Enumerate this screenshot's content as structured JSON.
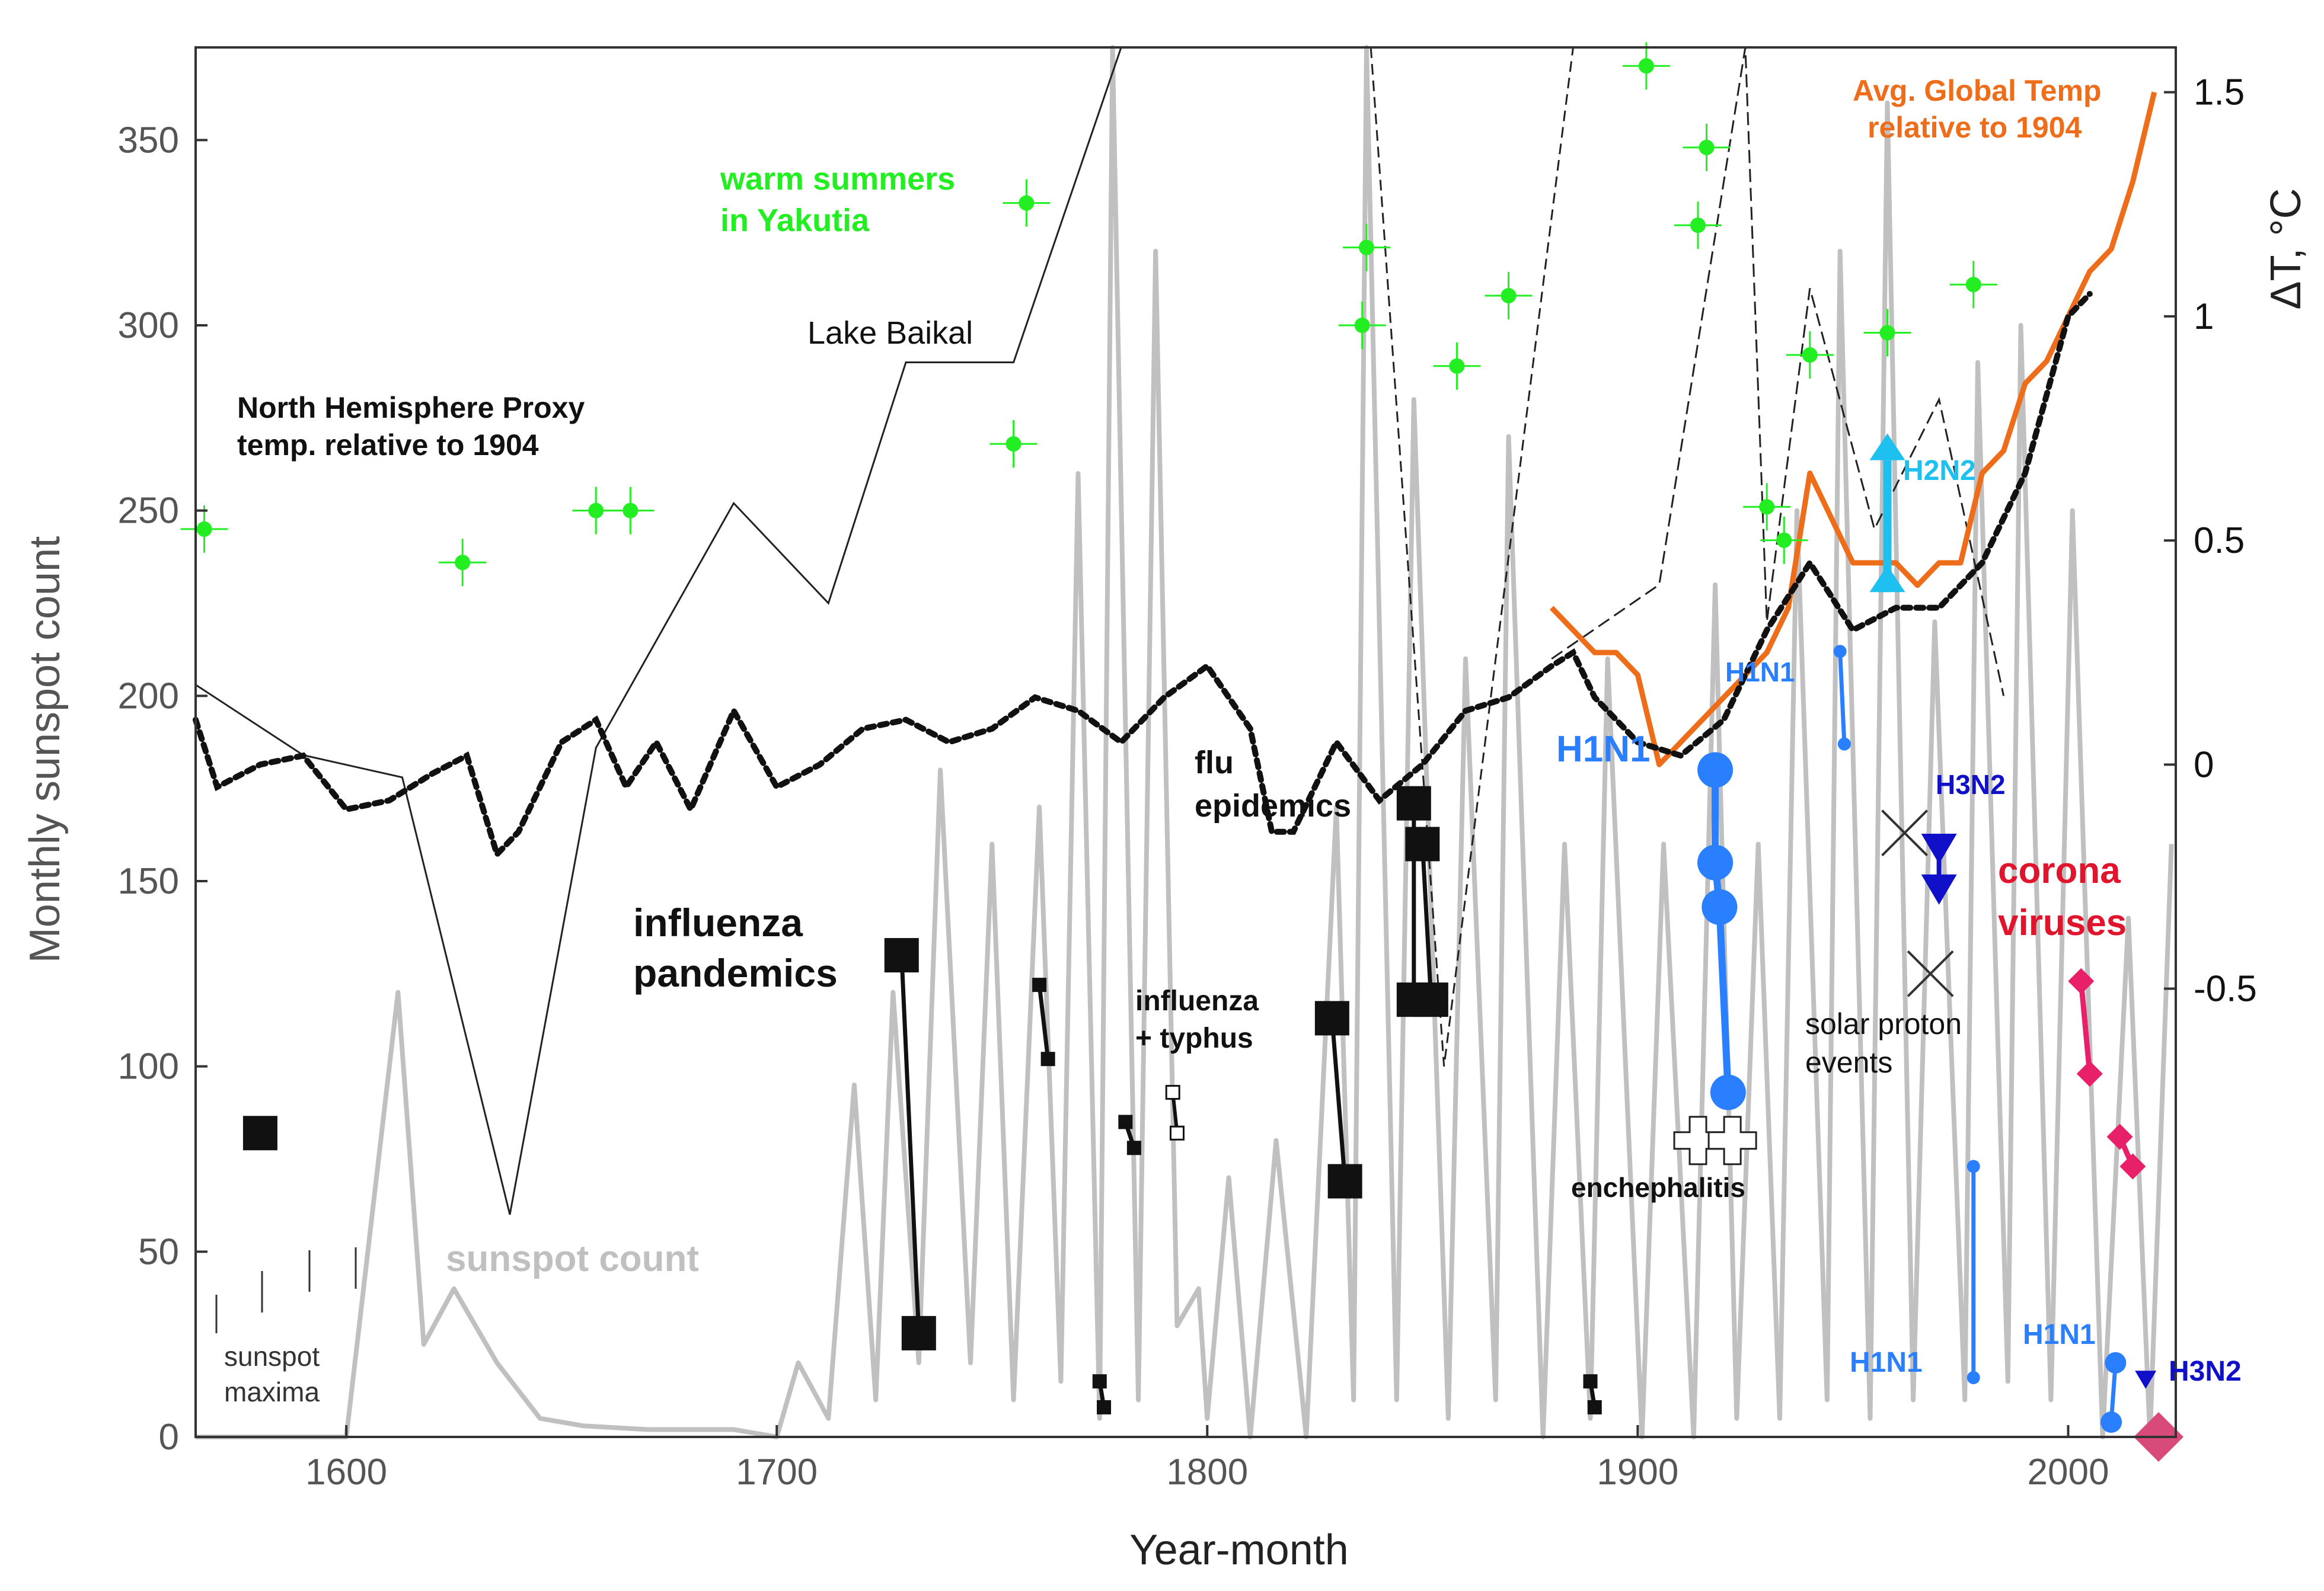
{
  "chart_data": {
    "type": "line",
    "xlabel": "Year-month",
    "ylabel": "Monthly sunspot count",
    "y2label": "ΔT, °C",
    "xlim": [
      1565,
      2025
    ],
    "ylim": [
      0,
      375
    ],
    "y2lim": [
      -1.5,
      1.6
    ],
    "x_ticks": [
      "1600",
      "1700",
      "1800",
      "1900",
      "2000"
    ],
    "y_ticks": [
      "0",
      "50",
      "100",
      "150",
      "200",
      "250",
      "300",
      "350"
    ],
    "y2_ticks": [
      "-0.5",
      "0",
      "0.5",
      "1",
      "1.5"
    ],
    "grid": false,
    "colors": {
      "sunspot": "#c0c0c0",
      "nh_proxy": "#111111",
      "global_temp": "#ee6d1a",
      "yakutia": "#22ee22",
      "h1n1": "#2a7fff",
      "h3n2": "#1010c8",
      "h2n2": "#1ec0f0",
      "corona": "#e8206a",
      "pandemic": "#111111"
    },
    "annotations": {
      "warm_summers": [
        "warm summers",
        "in Yakutia"
      ],
      "lake_baikal": "Lake Baikal",
      "nh_proxy": [
        "North Hemisphere Proxy",
        "temp. relative to 1904"
      ],
      "global_temp": [
        "Avg. Global Temp",
        "relative to 1904"
      ],
      "influenza_pandemics": [
        "influenza",
        "pandemics"
      ],
      "flu_epidemics": [
        "flu",
        "epidemics"
      ],
      "influenza_typhus": [
        "influenza",
        "+ typhus"
      ],
      "h1n1_large": "H1N1",
      "h1n1_upper": "H1N1",
      "h3n2_upper": "H3N2",
      "h2n2": "H2N2",
      "corona": [
        "corona",
        "viruses"
      ],
      "solar_proton": [
        "solar proton",
        "events"
      ],
      "encephalitis": "enchephalitis",
      "sunspot_count": "sunspot count",
      "sunspot_maxima": [
        "sunspot",
        "maxima"
      ],
      "h1n1_lower_a": "H1N1",
      "h1n1_lower_b": "H1N1",
      "h3n2_lower": "H3N2"
    },
    "series": [
      {
        "name": "sunspot count",
        "axis": "left",
        "points": [
          [
            1565,
            0
          ],
          [
            1600,
            0
          ],
          [
            1612,
            120
          ],
          [
            1618,
            25
          ],
          [
            1625,
            40
          ],
          [
            1635,
            20
          ],
          [
            1645,
            5
          ],
          [
            1655,
            3
          ],
          [
            1670,
            2
          ],
          [
            1690,
            2
          ],
          [
            1700,
            0
          ],
          [
            1705,
            20
          ],
          [
            1712,
            5
          ],
          [
            1718,
            95
          ],
          [
            1723,
            10
          ],
          [
            1727,
            120
          ],
          [
            1733,
            20
          ],
          [
            1738,
            180
          ],
          [
            1745,
            20
          ],
          [
            1750,
            160
          ],
          [
            1755,
            10
          ],
          [
            1761,
            170
          ],
          [
            1766,
            15
          ],
          [
            1770,
            260
          ],
          [
            1775,
            5
          ],
          [
            1778,
            390
          ],
          [
            1784,
            10
          ],
          [
            1788,
            320
          ],
          [
            1793,
            30
          ],
          [
            1798,
            40
          ],
          [
            1800,
            5
          ],
          [
            1805,
            70
          ],
          [
            1810,
            0
          ],
          [
            1816,
            80
          ],
          [
            1823,
            0
          ],
          [
            1830,
            170
          ],
          [
            1834,
            10
          ],
          [
            1837,
            380
          ],
          [
            1844,
            10
          ],
          [
            1848,
            280
          ],
          [
            1856,
            5
          ],
          [
            1860,
            210
          ],
          [
            1867,
            10
          ],
          [
            1870,
            270
          ],
          [
            1878,
            0
          ],
          [
            1883,
            160
          ],
          [
            1889,
            5
          ],
          [
            1893,
            210
          ],
          [
            1901,
            0
          ],
          [
            1906,
            160
          ],
          [
            1913,
            0
          ],
          [
            1918,
            230
          ],
          [
            1923,
            5
          ],
          [
            1928,
            160
          ],
          [
            1933,
            5
          ],
          [
            1937,
            250
          ],
          [
            1944,
            10
          ],
          [
            1947,
            320
          ],
          [
            1954,
            5
          ],
          [
            1958,
            360
          ],
          [
            1964,
            10
          ],
          [
            1969,
            220
          ],
          [
            1976,
            10
          ],
          [
            1979,
            290
          ],
          [
            1986,
            15
          ],
          [
            1989,
            300
          ],
          [
            1996,
            10
          ],
          [
            2001,
            250
          ],
          [
            2008,
            0
          ],
          [
            2014,
            140
          ],
          [
            2019,
            0
          ],
          [
            2024,
            160
          ]
        ]
      },
      {
        "name": "North Hemisphere Proxy",
        "axis": "right",
        "points": [
          [
            1565,
            0.1
          ],
          [
            1570,
            -0.05
          ],
          [
            1580,
            0.0
          ],
          [
            1590,
            0.02
          ],
          [
            1600,
            -0.1
          ],
          [
            1610,
            -0.08
          ],
          [
            1620,
            -0.02
          ],
          [
            1628,
            0.02
          ],
          [
            1635,
            -0.2
          ],
          [
            1640,
            -0.15
          ],
          [
            1650,
            0.05
          ],
          [
            1658,
            0.1
          ],
          [
            1665,
            -0.05
          ],
          [
            1672,
            0.05
          ],
          [
            1680,
            -0.1
          ],
          [
            1690,
            0.12
          ],
          [
            1700,
            -0.05
          ],
          [
            1710,
            0.0
          ],
          [
            1720,
            0.08
          ],
          [
            1730,
            0.1
          ],
          [
            1740,
            0.05
          ],
          [
            1750,
            0.08
          ],
          [
            1760,
            0.15
          ],
          [
            1770,
            0.12
          ],
          [
            1780,
            0.05
          ],
          [
            1790,
            0.15
          ],
          [
            1800,
            0.22
          ],
          [
            1810,
            0.08
          ],
          [
            1815,
            -0.15
          ],
          [
            1820,
            -0.15
          ],
          [
            1830,
            0.05
          ],
          [
            1840,
            -0.08
          ],
          [
            1850,
            0.0
          ],
          [
            1860,
            0.12
          ],
          [
            1870,
            0.15
          ],
          [
            1880,
            0.22
          ],
          [
            1885,
            0.25
          ],
          [
            1890,
            0.15
          ],
          [
            1900,
            0.05
          ],
          [
            1910,
            0.02
          ],
          [
            1920,
            0.1
          ],
          [
            1930,
            0.3
          ],
          [
            1940,
            0.45
          ],
          [
            1950,
            0.3
          ],
          [
            1960,
            0.35
          ],
          [
            1970,
            0.35
          ],
          [
            1980,
            0.45
          ],
          [
            1990,
            0.65
          ],
          [
            2000,
            1.0
          ],
          [
            2005,
            1.05
          ]
        ]
      },
      {
        "name": "Avg. Global Temp",
        "axis": "right",
        "points": [
          [
            1880,
            0.35
          ],
          [
            1885,
            0.3
          ],
          [
            1890,
            0.25
          ],
          [
            1895,
            0.25
          ],
          [
            1900,
            0.2
          ],
          [
            1905,
            0.0
          ],
          [
            1910,
            0.05
          ],
          [
            1915,
            0.1
          ],
          [
            1920,
            0.15
          ],
          [
            1925,
            0.2
          ],
          [
            1930,
            0.25
          ],
          [
            1935,
            0.35
          ],
          [
            1940,
            0.65
          ],
          [
            1945,
            0.55
          ],
          [
            1950,
            0.45
          ],
          [
            1955,
            0.45
          ],
          [
            1960,
            0.45
          ],
          [
            1965,
            0.4
          ],
          [
            1970,
            0.45
          ],
          [
            1975,
            0.45
          ],
          [
            1980,
            0.65
          ],
          [
            1985,
            0.7
          ],
          [
            1990,
            0.85
          ],
          [
            1995,
            0.9
          ],
          [
            2000,
            1.0
          ],
          [
            2005,
            1.1
          ],
          [
            2010,
            1.15
          ],
          [
            2015,
            1.3
          ],
          [
            2020,
            1.5
          ]
        ]
      },
      {
        "name": "Lake Baikal",
        "axis": "left",
        "points": [
          [
            1565,
            203
          ],
          [
            1590,
            184
          ],
          [
            1613,
            178
          ],
          [
            1638,
            60
          ],
          [
            1658,
            186
          ],
          [
            1690,
            252
          ],
          [
            1712,
            225
          ],
          [
            1730,
            290
          ],
          [
            1755,
            290
          ],
          [
            1780,
            375
          ]
        ]
      },
      {
        "name": "Lake Baikal (dashed)",
        "axis": "left",
        "points": [
          [
            1838,
            375
          ],
          [
            1855,
            100
          ],
          [
            1885,
            375
          ]
        ]
      },
      {
        "name": "Lake Baikal (late)",
        "axis": "left",
        "points": [
          [
            1880,
            210
          ],
          [
            1905,
            230
          ],
          [
            1925,
            375
          ],
          [
            1930,
            220
          ],
          [
            1940,
            310
          ],
          [
            1955,
            245
          ],
          [
            1970,
            280
          ],
          [
            1985,
            200
          ]
        ]
      }
    ],
    "yakutia_points": [
      [
        1567,
        245
      ],
      [
        1627,
        236
      ],
      [
        1658,
        250
      ],
      [
        1666,
        250
      ],
      [
        1755,
        268
      ],
      [
        1758,
        333
      ],
      [
        1836,
        300
      ],
      [
        1837,
        321
      ],
      [
        1858,
        289
      ],
      [
        1870,
        308
      ],
      [
        1902,
        370
      ],
      [
        1914,
        327
      ],
      [
        1916,
        348
      ],
      [
        1930,
        251
      ],
      [
        1934,
        242
      ],
      [
        1940,
        292
      ],
      [
        1958,
        298
      ],
      [
        1978,
        311
      ]
    ],
    "pandemic_segments": [
      [
        1580,
        82,
        1580,
        82
      ],
      [
        1729,
        130,
        1733,
        28
      ],
      [
        1761,
        122,
        1763,
        102
      ],
      [
        1781,
        85,
        1783,
        78
      ],
      [
        1775,
        15,
        1776,
        8
      ],
      [
        1829,
        113,
        1832,
        69
      ],
      [
        1848,
        171,
        1848,
        118
      ],
      [
        1850,
        160,
        1852,
        118
      ],
      [
        1889,
        15,
        1890,
        8
      ]
    ],
    "typhus_segment": [
      1792,
      93,
      1793,
      82
    ],
    "h1n1_segments": [
      [
        1918,
        180,
        1918,
        155
      ],
      [
        1918,
        155,
        1919,
        143
      ],
      [
        1919,
        143,
        1921,
        93
      ],
      [
        1947,
        212,
        1948,
        187
      ],
      [
        1978,
        73,
        1978,
        16
      ],
      [
        2010,
        4,
        2011,
        20
      ]
    ],
    "h2n2_arrow": [
      1958,
      228,
      1958,
      270
    ],
    "h3n2_marks": [
      [
        1970,
        158
      ],
      [
        1970,
        147
      ],
      [
        2018,
        15
      ]
    ],
    "corona_segments": [
      [
        2003,
        123,
        2005,
        98
      ],
      [
        2012,
        81,
        2015,
        73
      ]
    ],
    "corona_end": [
      2021,
      0
    ],
    "solar_proton_marks": [
      [
        1962,
        163
      ],
      [
        1968,
        125
      ]
    ],
    "encephalitis_marks": [
      [
        1914,
        80
      ],
      [
        1922,
        80
      ]
    ]
  }
}
